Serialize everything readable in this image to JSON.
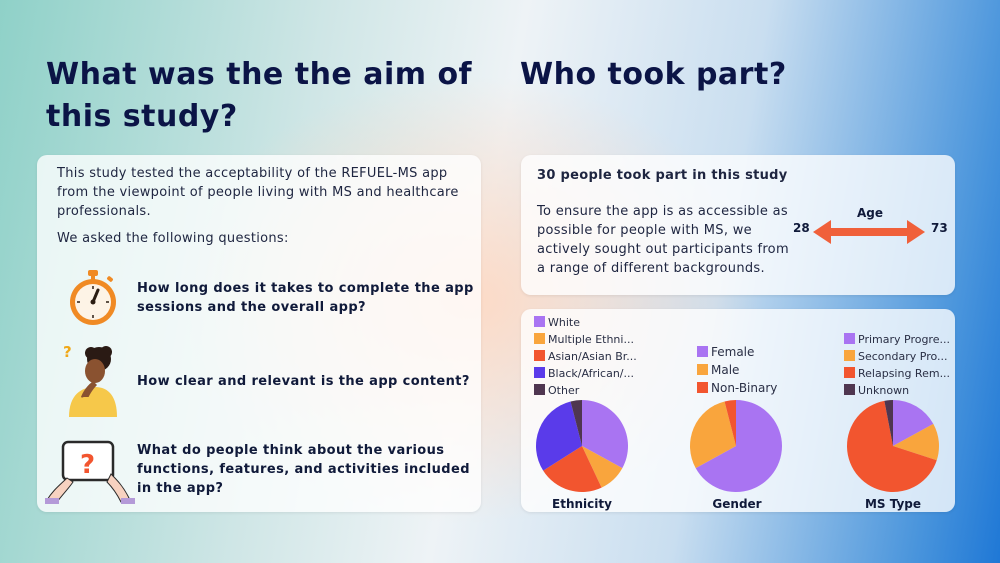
{
  "aim": {
    "heading": "What was the the aim of this study?",
    "intro": "This study tested the acceptability of the REFUEL-MS app from the viewpoint of people living with MS and healthcare professionals.",
    "asked": "We asked the following questions:",
    "questions": [
      {
        "text": "How long does it takes to complete the app sessions and the overall app?",
        "icon": "stopwatch-icon"
      },
      {
        "text": "How clear and relevant is the app content?",
        "icon": "thinking-person-icon"
      },
      {
        "text": "What do people think about the various functions, features, and activities included in the app?",
        "icon": "tablet-question-icon"
      }
    ]
  },
  "who": {
    "heading": "Who took part?",
    "count_text": "30 people took part in this study",
    "body": "To ensure the app is as accessible as possible for people with MS, we actively sought out participants from a range of different backgrounds.",
    "age": {
      "label": "Age",
      "min": "28",
      "max": "73",
      "arrow_color": "#f0603a"
    }
  },
  "colors": {
    "heading": "#0b1446",
    "purple": "#a974f2",
    "orange": "#f9a53d",
    "red": "#f2552f",
    "blue": "#5a3bea",
    "dark": "#4f3650"
  },
  "chart_data": [
    {
      "type": "pie",
      "title": "Ethnicity",
      "categories": [
        "White",
        "Multiple Ethni...",
        "Asian/Asian Br...",
        "Black/African/...",
        "Other"
      ],
      "values": [
        33,
        10,
        23,
        30,
        4
      ],
      "colors": [
        "#a974f2",
        "#f9a53d",
        "#f2552f",
        "#5a3bea",
        "#4f3650"
      ],
      "legend": "top-left"
    },
    {
      "type": "pie",
      "title": "Gender",
      "categories": [
        "Female",
        "Male",
        "Non-Binary"
      ],
      "values": [
        67,
        29,
        4
      ],
      "colors": [
        "#a974f2",
        "#f9a53d",
        "#f2552f"
      ],
      "legend": "top"
    },
    {
      "type": "pie",
      "title": "MS Type",
      "categories": [
        "Primary Progre...",
        "Secondary Pro...",
        "Relapsing Rem...",
        "Unknown"
      ],
      "values": [
        17,
        13,
        67,
        3
      ],
      "colors": [
        "#a974f2",
        "#f9a53d",
        "#f2552f",
        "#4f3650"
      ],
      "legend": "top-right"
    }
  ]
}
